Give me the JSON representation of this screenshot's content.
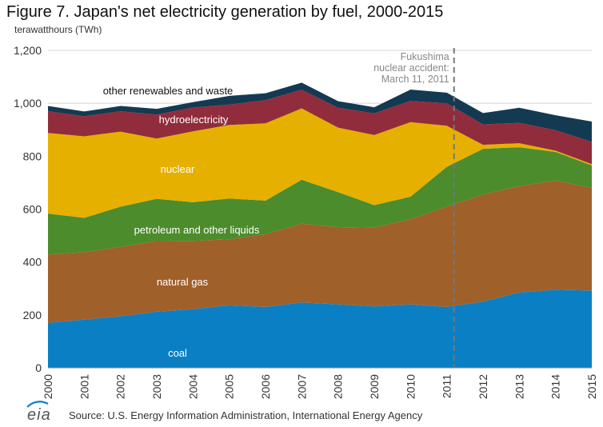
{
  "title": "Figure 7. Japan's net electricity generation by fuel, 2000-2015",
  "units": "terawatthours  (TWh)",
  "logo_text": "eia",
  "source": "Source: U.S. Energy Information Administration, International Energy Agency",
  "chart_data": {
    "type": "area",
    "stacked": true,
    "x": [
      2000,
      2001,
      2002,
      2003,
      2004,
      2005,
      2006,
      2007,
      2008,
      2009,
      2010,
      2011,
      2012,
      2013,
      2014,
      2015
    ],
    "xticks": [
      "2000",
      "2001",
      "2002",
      "2003",
      "2004",
      "2005",
      "2006",
      "2007",
      "2008",
      "2009",
      "2010",
      "2011",
      "2012",
      "2013",
      "2014",
      "2015"
    ],
    "ylim": [
      0,
      1200
    ],
    "yticks": [
      "0",
      "200",
      "400",
      "600",
      "800",
      "1,000",
      "1,200"
    ],
    "grid": true,
    "series": [
      {
        "name": "coal",
        "color": "#0a7fc3",
        "values": [
          170,
          182,
          195,
          212,
          222,
          236,
          230,
          247,
          240,
          232,
          240,
          230,
          250,
          285,
          295,
          292
        ]
      },
      {
        "name": "natural gas",
        "color": "#a0602a",
        "values": [
          258,
          255,
          262,
          267,
          258,
          250,
          275,
          298,
          292,
          298,
          322,
          380,
          405,
          402,
          413,
          388
        ]
      },
      {
        "name": "petroleum  and other liquids",
        "color": "#4c8c2c",
        "values": [
          155,
          130,
          152,
          160,
          146,
          154,
          127,
          166,
          132,
          85,
          85,
          150,
          173,
          147,
          108,
          85
        ]
      },
      {
        "name": "nuclear",
        "color": "#e5b000",
        "values": [
          305,
          308,
          284,
          228,
          268,
          278,
          292,
          270,
          244,
          265,
          282,
          155,
          15,
          15,
          5,
          5
        ]
      },
      {
        "name": "hydroelectricity",
        "color": "#912c3c",
        "values": [
          82,
          76,
          77,
          90,
          90,
          77,
          88,
          70,
          75,
          82,
          80,
          85,
          77,
          77,
          77,
          84
        ]
      },
      {
        "name": "other renewables  and waste",
        "color": "#143a52",
        "values": [
          20,
          18,
          20,
          22,
          20,
          33,
          26,
          27,
          25,
          23,
          43,
          40,
          43,
          57,
          57,
          77
        ]
      }
    ],
    "annotation": {
      "lines": [
        "Fukushima",
        "nuclear accident:",
        "March 11, 2011"
      ],
      "x": 2011.2
    }
  }
}
